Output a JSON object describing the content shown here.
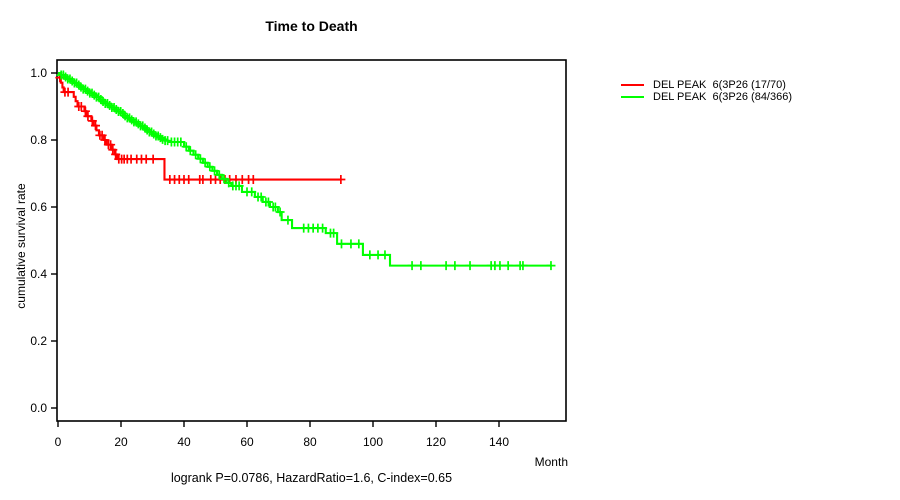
{
  "chart_data": {
    "type": "line",
    "subtype": "kaplan-meier-step-curves",
    "title": "Time to Death",
    "xlabel": "Month",
    "ylabel": "cumulative survival rate",
    "annotation": "logrank P=0.0786, HazardRatio=1.6, C-index=0.65",
    "xlim": [
      0,
      160
    ],
    "ylim": [
      0.0,
      1.0
    ],
    "grid": false,
    "legend_position": "right-outside",
    "x_ticks": [
      0,
      20,
      40,
      60,
      80,
      100,
      120,
      140
    ],
    "y_ticks": [
      "0.0",
      "0.2",
      "0.4",
      "0.6",
      "0.8",
      "1.0"
    ],
    "series": [
      {
        "name": "DEL PEAK  6(3P26 (17/70)",
        "color": "#ff0000",
        "end_month": 89.8,
        "steps": [
          [
            0,
            1.0
          ],
          [
            0.5,
            0.986
          ],
          [
            0.9,
            0.971
          ],
          [
            1.4,
            0.957
          ],
          [
            1.8,
            0.943
          ],
          [
            5.0,
            0.929
          ],
          [
            5.6,
            0.916
          ],
          [
            6.2,
            0.9
          ],
          [
            8.4,
            0.886
          ],
          [
            9.0,
            0.871
          ],
          [
            10.6,
            0.857
          ],
          [
            11.3,
            0.843
          ],
          [
            12.2,
            0.829
          ],
          [
            13.0,
            0.814
          ],
          [
            14.6,
            0.8
          ],
          [
            15.4,
            0.786
          ],
          [
            17.0,
            0.771
          ],
          [
            18.0,
            0.757
          ],
          [
            18.8,
            0.743
          ],
          [
            33.8,
            0.682
          ]
        ],
        "censor_months": [
          0.6,
          2.2,
          3.2,
          6.6,
          7.4,
          8.7,
          9.5,
          10.9,
          11.9,
          13.3,
          14.0,
          14.9,
          16.0,
          16.7,
          17.4,
          18.3,
          19.3,
          20.2,
          21.0,
          22.0,
          23.2,
          25.0,
          26.5,
          28.0,
          30.2,
          35.5,
          37.0,
          38.5,
          40.0,
          41.5,
          45.0,
          46.0,
          48.5,
          50.0,
          51.5,
          53.0,
          54.5,
          56.5,
          58.5,
          60.5,
          62.0,
          89.8
        ]
      },
      {
        "name": "DEL PEAK  6(3P26 (84/366)",
        "color": "#00ff00",
        "end_month": 156.5,
        "steps": [
          [
            0,
            1.0
          ],
          [
            1,
            0.994
          ],
          [
            2,
            0.988
          ],
          [
            3,
            0.982
          ],
          [
            4,
            0.976
          ],
          [
            5,
            0.97
          ],
          [
            6,
            0.964
          ],
          [
            7,
            0.958
          ],
          [
            8,
            0.952
          ],
          [
            9,
            0.946
          ],
          [
            10,
            0.94
          ],
          [
            11,
            0.934
          ],
          [
            12,
            0.928
          ],
          [
            13,
            0.921
          ],
          [
            14,
            0.915
          ],
          [
            15,
            0.909
          ],
          [
            16,
            0.903
          ],
          [
            17,
            0.897
          ],
          [
            18,
            0.891
          ],
          [
            19,
            0.885
          ],
          [
            20,
            0.879
          ],
          [
            21,
            0.872
          ],
          [
            22,
            0.866
          ],
          [
            23,
            0.86
          ],
          [
            24,
            0.854
          ],
          [
            25,
            0.848
          ],
          [
            26,
            0.842
          ],
          [
            27,
            0.836
          ],
          [
            28,
            0.83
          ],
          [
            29,
            0.824
          ],
          [
            30,
            0.818
          ],
          [
            31,
            0.812
          ],
          [
            32,
            0.807
          ],
          [
            33,
            0.802
          ],
          [
            34,
            0.798
          ],
          [
            35,
            0.794
          ],
          [
            40,
            0.78
          ],
          [
            41.5,
            0.768
          ],
          [
            43,
            0.756
          ],
          [
            44.5,
            0.744
          ],
          [
            46,
            0.732
          ],
          [
            47.5,
            0.72
          ],
          [
            49,
            0.708
          ],
          [
            50.5,
            0.696
          ],
          [
            52,
            0.684
          ],
          [
            53.5,
            0.672
          ],
          [
            55,
            0.663
          ],
          [
            58.4,
            0.645
          ],
          [
            62.5,
            0.63
          ],
          [
            65,
            0.615
          ],
          [
            67.3,
            0.6
          ],
          [
            69.8,
            0.585
          ],
          [
            71,
            0.561
          ],
          [
            74.3,
            0.537
          ],
          [
            85,
            0.522
          ],
          [
            88.6,
            0.49
          ],
          [
            96.8,
            0.457
          ],
          [
            105.4,
            0.425
          ]
        ],
        "censor_months": [
          1.0,
          1.7,
          2.4,
          3.1,
          3.8,
          4.5,
          5.2,
          5.9,
          6.6,
          7.3,
          8.0,
          8.7,
          9.4,
          10.1,
          10.8,
          11.5,
          12.2,
          12.9,
          13.6,
          14.3,
          15.0,
          15.7,
          16.4,
          17.1,
          17.8,
          18.5,
          19.2,
          19.9,
          20.6,
          21.3,
          22.0,
          22.7,
          23.4,
          24.1,
          24.8,
          25.5,
          26.2,
          26.9,
          27.6,
          28.3,
          29.0,
          29.7,
          30.4,
          31.1,
          31.8,
          32.5,
          33.2,
          34.0,
          34.8,
          36.0,
          37.0,
          38.0,
          39.0,
          40.7,
          42.0,
          43.7,
          45.2,
          46.7,
          48.2,
          49.7,
          51.2,
          52.7,
          54.2,
          55.5,
          56.5,
          57.5,
          60.0,
          61.5,
          63.5,
          64.5,
          66.0,
          66.8,
          68.3,
          69.0,
          70.5,
          73.0,
          78.0,
          79.5,
          81.0,
          82.5,
          84.0,
          86.5,
          87.5,
          90.0,
          93.0,
          95.5,
          99.0,
          101.6,
          103.8,
          112.4,
          115.2,
          123.2,
          126.0,
          130.8,
          137.5,
          138.7,
          140.3,
          142.9,
          146.7,
          147.6,
          156.5
        ]
      }
    ]
  }
}
